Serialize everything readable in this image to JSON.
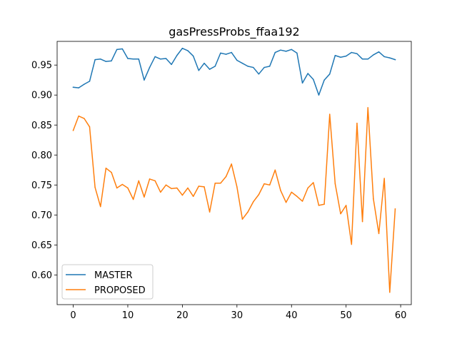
{
  "chart_data": {
    "type": "line",
    "title": "gasPressProbs_ffaa192",
    "xlabel": "",
    "ylabel": "",
    "xlim": [
      -2.95,
      61.95
    ],
    "ylim": [
      0.5505,
      0.9895
    ],
    "xticks": [
      0,
      10,
      20,
      30,
      40,
      50,
      60
    ],
    "xtick_labels": [
      "0",
      "10",
      "20",
      "30",
      "40",
      "50",
      "60"
    ],
    "yticks": [
      0.6,
      0.65,
      0.7,
      0.75,
      0.8,
      0.85,
      0.9,
      0.95
    ],
    "ytick_labels": [
      "0.60",
      "0.65",
      "0.70",
      "0.75",
      "0.80",
      "0.85",
      "0.90",
      "0.95"
    ],
    "grid": false,
    "legend_placement": "bottom-left",
    "series": [
      {
        "name": "MASTER",
        "color": "#1f77b4",
        "values": [
          0.913,
          0.912,
          0.918,
          0.923,
          0.959,
          0.96,
          0.956,
          0.957,
          0.976,
          0.977,
          0.961,
          0.96,
          0.96,
          0.925,
          0.946,
          0.964,
          0.96,
          0.961,
          0.951,
          0.966,
          0.978,
          0.974,
          0.965,
          0.941,
          0.953,
          0.943,
          0.948,
          0.97,
          0.968,
          0.971,
          0.958,
          0.953,
          0.948,
          0.946,
          0.935,
          0.946,
          0.948,
          0.971,
          0.975,
          0.973,
          0.976,
          0.97,
          0.92,
          0.936,
          0.926,
          0.9,
          0.925,
          0.935,
          0.966,
          0.963,
          0.965,
          0.971,
          0.969,
          0.96,
          0.96,
          0.967,
          0.972,
          0.964,
          0.962,
          0.959
        ]
      },
      {
        "name": "PROPOSED",
        "color": "#ff7f0e",
        "values": [
          0.841,
          0.865,
          0.861,
          0.847,
          0.746,
          0.714,
          0.778,
          0.771,
          0.745,
          0.751,
          0.745,
          0.726,
          0.757,
          0.73,
          0.76,
          0.757,
          0.738,
          0.75,
          0.744,
          0.745,
          0.733,
          0.745,
          0.731,
          0.748,
          0.747,
          0.705,
          0.753,
          0.753,
          0.764,
          0.785,
          0.747,
          0.693,
          0.705,
          0.722,
          0.734,
          0.752,
          0.75,
          0.775,
          0.741,
          0.721,
          0.738,
          0.731,
          0.723,
          0.745,
          0.754,
          0.716,
          0.718,
          0.868,
          0.752,
          0.702,
          0.716,
          0.651,
          0.853,
          0.689,
          0.879,
          0.727,
          0.669,
          0.761,
          0.571,
          0.71
        ]
      }
    ]
  }
}
